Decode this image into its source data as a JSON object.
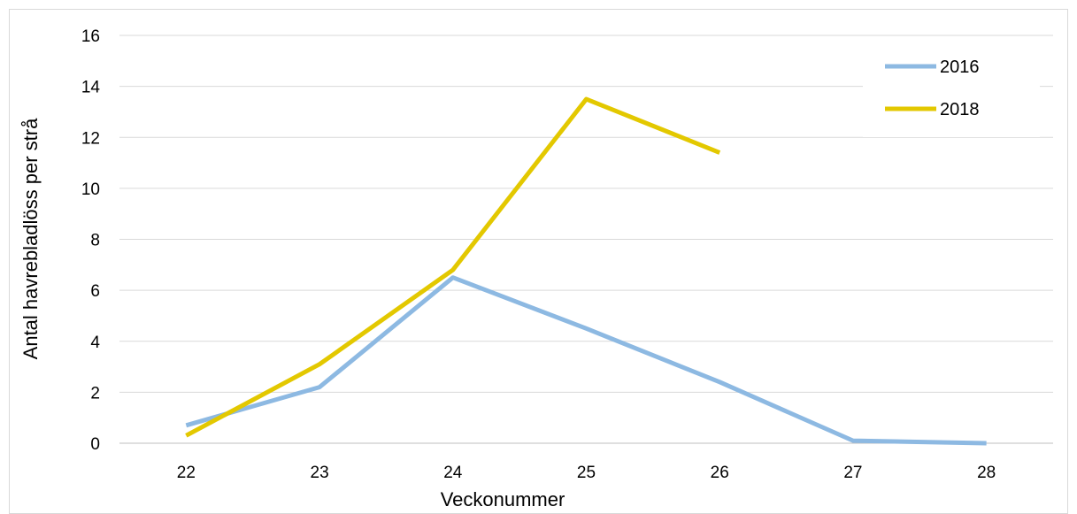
{
  "chart_data": {
    "type": "line",
    "title": "",
    "xlabel": "Veckonummer",
    "ylabel": "Antal havrebladlöss per strå",
    "categories": [
      "22",
      "23",
      "24",
      "25",
      "26",
      "27",
      "28"
    ],
    "ylim": [
      0,
      16
    ],
    "yticks": [
      0,
      2,
      4,
      6,
      8,
      10,
      12,
      14,
      16
    ],
    "grid": true,
    "legend": "top-right",
    "series": [
      {
        "name": "2016",
        "color": "#8DB9E2",
        "values": [
          0.7,
          2.2,
          6.5,
          4.5,
          2.4,
          0.1,
          0.0
        ]
      },
      {
        "name": "2018",
        "color": "#E3C800",
        "values": [
          0.3,
          3.1,
          6.8,
          13.5,
          11.4,
          null,
          null
        ]
      }
    ]
  }
}
